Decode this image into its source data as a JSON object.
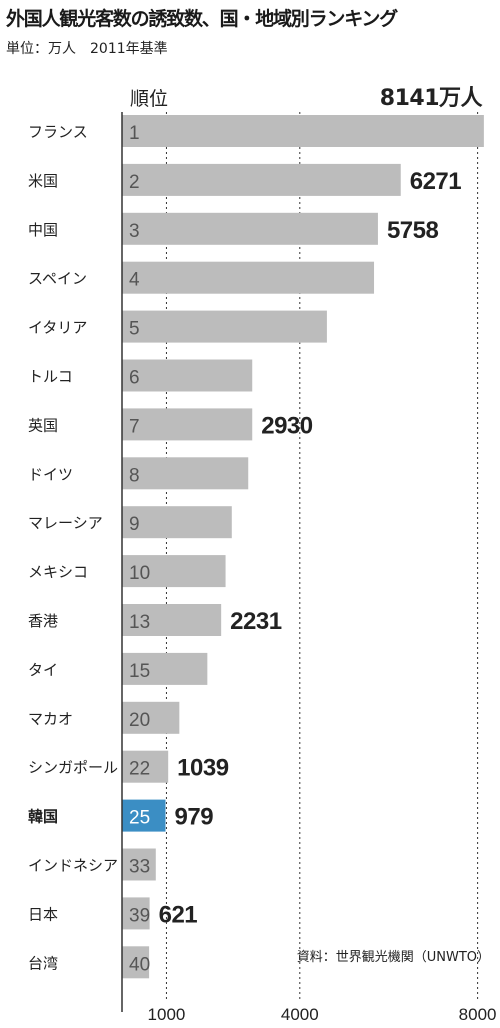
{
  "title": "外国人観光客数の誘致数、国・地域別ランキング",
  "subtitle": "単位：万人　2011年基準",
  "rank_header": "順位",
  "total_label": "8141万人",
  "source": "資料：世界観光機関（UNWTO）",
  "colors": {
    "bar": "#bcbcbc",
    "highlight": "#3b8ec4",
    "text": "#222222",
    "rank_text": "#555555",
    "grid": "#333333"
  },
  "chart_data": {
    "type": "bar",
    "orientation": "horizontal",
    "title": "外国人観光客数の誘致数、国・地域別ランキング",
    "unit": "万人",
    "categories": [
      "フランス",
      "米国",
      "中国",
      "スペイン",
      "イタリア",
      "トルコ",
      "英国",
      "ドイツ",
      "マレーシア",
      "メキシコ",
      "香港",
      "タイ",
      "マカオ",
      "シンガポール",
      "韓国",
      "インドネシア",
      "日本",
      "台湾"
    ],
    "ranks": [
      "1",
      "2",
      "3",
      "4",
      "5",
      "6",
      "7",
      "8",
      "9",
      "10",
      "13",
      "15",
      "20",
      "22",
      "25",
      "33",
      "39",
      "40"
    ],
    "values": [
      8141,
      6271,
      5758,
      5670,
      4610,
      2930,
      2930,
      2840,
      2470,
      2330,
      2231,
      1920,
      1290,
      1039,
      979,
      760,
      621,
      610
    ],
    "data_labels": [
      "",
      "6271",
      "5758",
      "",
      "",
      "",
      "2930",
      "",
      "",
      "",
      "2231",
      "",
      "",
      "1039",
      "979",
      "",
      "621",
      ""
    ],
    "highlight_category": "韓国",
    "x_ticks": [
      1000,
      4000,
      8000
    ],
    "x_tick_labels": [
      "1000",
      "4000",
      "8000"
    ],
    "xlim": [
      0,
      8300
    ],
    "grid": true
  }
}
